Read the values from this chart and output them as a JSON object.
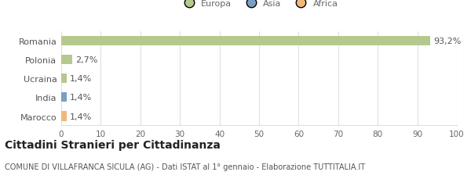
{
  "categories": [
    "Romania",
    "Polonia",
    "Ucraina",
    "India",
    "Marocco"
  ],
  "values": [
    93.2,
    2.7,
    1.4,
    1.4,
    1.4
  ],
  "labels": [
    "93,2%",
    "2,7%",
    "1,4%",
    "1,4%",
    "1,4%"
  ],
  "bar_colors": [
    "#b5c98e",
    "#b5c98e",
    "#b5c98e",
    "#7a9fc2",
    "#f0b87a"
  ],
  "legend_items": [
    {
      "label": "Europa",
      "color": "#b5c98e"
    },
    {
      "label": "Asia",
      "color": "#7a9fc2"
    },
    {
      "label": "Africa",
      "color": "#f0b87a"
    }
  ],
  "xlim": [
    0,
    100
  ],
  "xticks": [
    0,
    10,
    20,
    30,
    40,
    50,
    60,
    70,
    80,
    90,
    100
  ],
  "title": "Cittadini Stranieri per Cittadinanza",
  "subtitle": "COMUNE DI VILLAFRANCA SICULA (AG) - Dati ISTAT al 1° gennaio - Elaborazione TUTTITALIA.IT",
  "background_color": "#ffffff",
  "bar_height": 0.5,
  "grid_color": "#e0e0e0",
  "label_fontsize": 8,
  "tick_fontsize": 7.5,
  "title_fontsize": 10,
  "subtitle_fontsize": 7
}
